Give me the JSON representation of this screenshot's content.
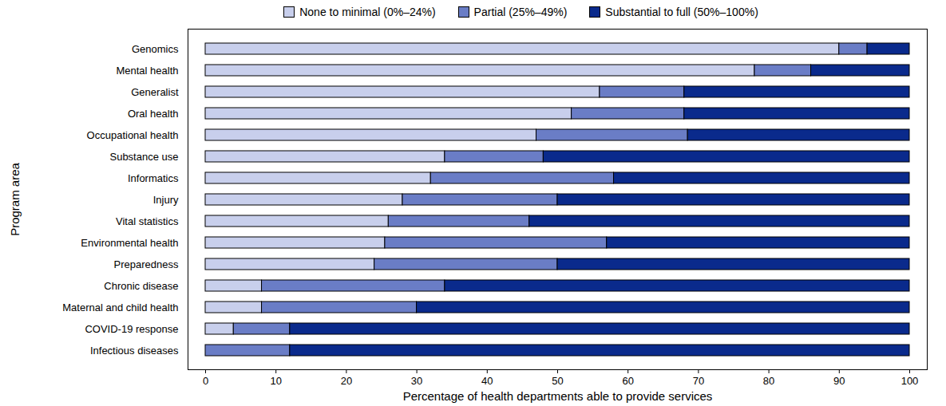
{
  "chart_data": {
    "type": "bar",
    "orientation": "horizontal",
    "stacked": true,
    "legend": "top",
    "grid": false,
    "xlabel": "Percentage of health departments able to provide services",
    "ylabel": "Program area",
    "categories": [
      "Genomics",
      "Mental health",
      "Generalist",
      "Oral health",
      "Occupational health",
      "Substance use",
      "Informatics",
      "Injury",
      "Vital statistics",
      "Environmental health",
      "Preparedness",
      "Chronic disease",
      "Maternal and child health",
      "COVID-19 response",
      "Infectious diseases"
    ],
    "series": [
      {
        "name": "None to minimal (0%–24%)",
        "color": "#c8cfec",
        "values": [
          90,
          78,
          56,
          52,
          47,
          34,
          32,
          28,
          26,
          25.5,
          24,
          8,
          8,
          4,
          0
        ]
      },
      {
        "name": "Partial (25%–49%)",
        "color": "#6a7dc6",
        "values": [
          4,
          8,
          12,
          16,
          21.5,
          14,
          26,
          22,
          20,
          31.5,
          26,
          26,
          22,
          8,
          12
        ]
      },
      {
        "name": "Substantial to full (50%–100%)",
        "color": "#0a2a8c",
        "values": [
          6,
          14,
          32,
          32,
          31.5,
          52,
          42,
          50,
          54,
          43,
          50,
          66,
          70,
          88,
          88
        ]
      }
    ],
    "xlim": [
      0,
      100
    ],
    "xticks": [
      0,
      10,
      20,
      30,
      40,
      50,
      60,
      70,
      80,
      90,
      100
    ]
  }
}
